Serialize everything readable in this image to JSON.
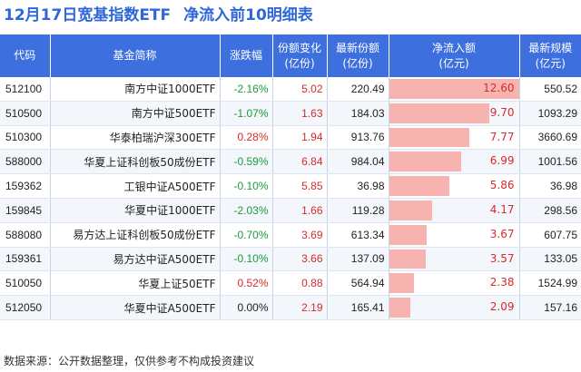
{
  "title": {
    "part1": "12月17日宽基指数ETF",
    "part2": "净流入前10明细表"
  },
  "headers": {
    "code": "代码",
    "name": "基金简称",
    "change": "涨跌幅",
    "share_change": "份额变化\n(亿份)",
    "shares": "最新份额\n(亿份)",
    "net_inflow": "净流入额\n(亿元)",
    "scale": "最新规模\n(亿元)"
  },
  "rows": [
    {
      "code": "512100",
      "name": "南方中证1000ETF",
      "change": "-2.16%",
      "share_change": "5.02",
      "shares": "220.49",
      "net_inflow": "12.60",
      "inflow_value": 12.6,
      "scale": "550.52"
    },
    {
      "code": "510500",
      "name": "南方中证500ETF",
      "change": "-1.07%",
      "share_change": "1.63",
      "shares": "184.03",
      "net_inflow": "9.70",
      "inflow_value": 9.7,
      "scale": "1093.29"
    },
    {
      "code": "510300",
      "name": "华泰柏瑞沪深300ETF",
      "change": "0.28%",
      "share_change": "1.94",
      "shares": "913.76",
      "net_inflow": "7.77",
      "inflow_value": 7.77,
      "scale": "3660.69"
    },
    {
      "code": "588000",
      "name": "华夏上证科创板50成份ETF",
      "change": "-0.59%",
      "share_change": "6.84",
      "shares": "984.04",
      "net_inflow": "6.99",
      "inflow_value": 6.99,
      "scale": "1001.56"
    },
    {
      "code": "159362",
      "name": "工银中证A500ETF",
      "change": "-0.10%",
      "share_change": "5.85",
      "shares": "36.98",
      "net_inflow": "5.86",
      "inflow_value": 5.86,
      "scale": "36.98"
    },
    {
      "code": "159845",
      "name": "华夏中证1000ETF",
      "change": "-2.03%",
      "share_change": "1.66",
      "shares": "119.28",
      "net_inflow": "4.17",
      "inflow_value": 4.17,
      "scale": "298.56"
    },
    {
      "code": "588080",
      "name": "易方达上证科创板50成份ETF",
      "change": "-0.70%",
      "share_change": "3.69",
      "shares": "613.34",
      "net_inflow": "3.67",
      "inflow_value": 3.67,
      "scale": "607.75"
    },
    {
      "code": "159361",
      "name": "易方达中证A500ETF",
      "change": "-0.10%",
      "share_change": "3.66",
      "shares": "137.09",
      "net_inflow": "3.57",
      "inflow_value": 3.57,
      "scale": "133.05"
    },
    {
      "code": "510050",
      "name": "华夏上证50ETF",
      "change": "0.52%",
      "share_change": "0.88",
      "shares": "564.94",
      "net_inflow": "2.38",
      "inflow_value": 2.38,
      "scale": "1524.99"
    },
    {
      "code": "512050",
      "name": "华夏中证A500ETF",
      "change": "0.00%",
      "share_change": "2.19",
      "shares": "165.41",
      "net_inflow": "2.09",
      "inflow_value": 2.09,
      "scale": "157.16"
    }
  ],
  "colors": {
    "header_bg": "#3d70de",
    "title": "#2f67d8",
    "bar": "#f7b3b0",
    "negative": "#1a9c3a",
    "positive": "#d62b2b"
  },
  "source": "数据来源：公开数据整理，仅供参考不构成投资建议"
}
